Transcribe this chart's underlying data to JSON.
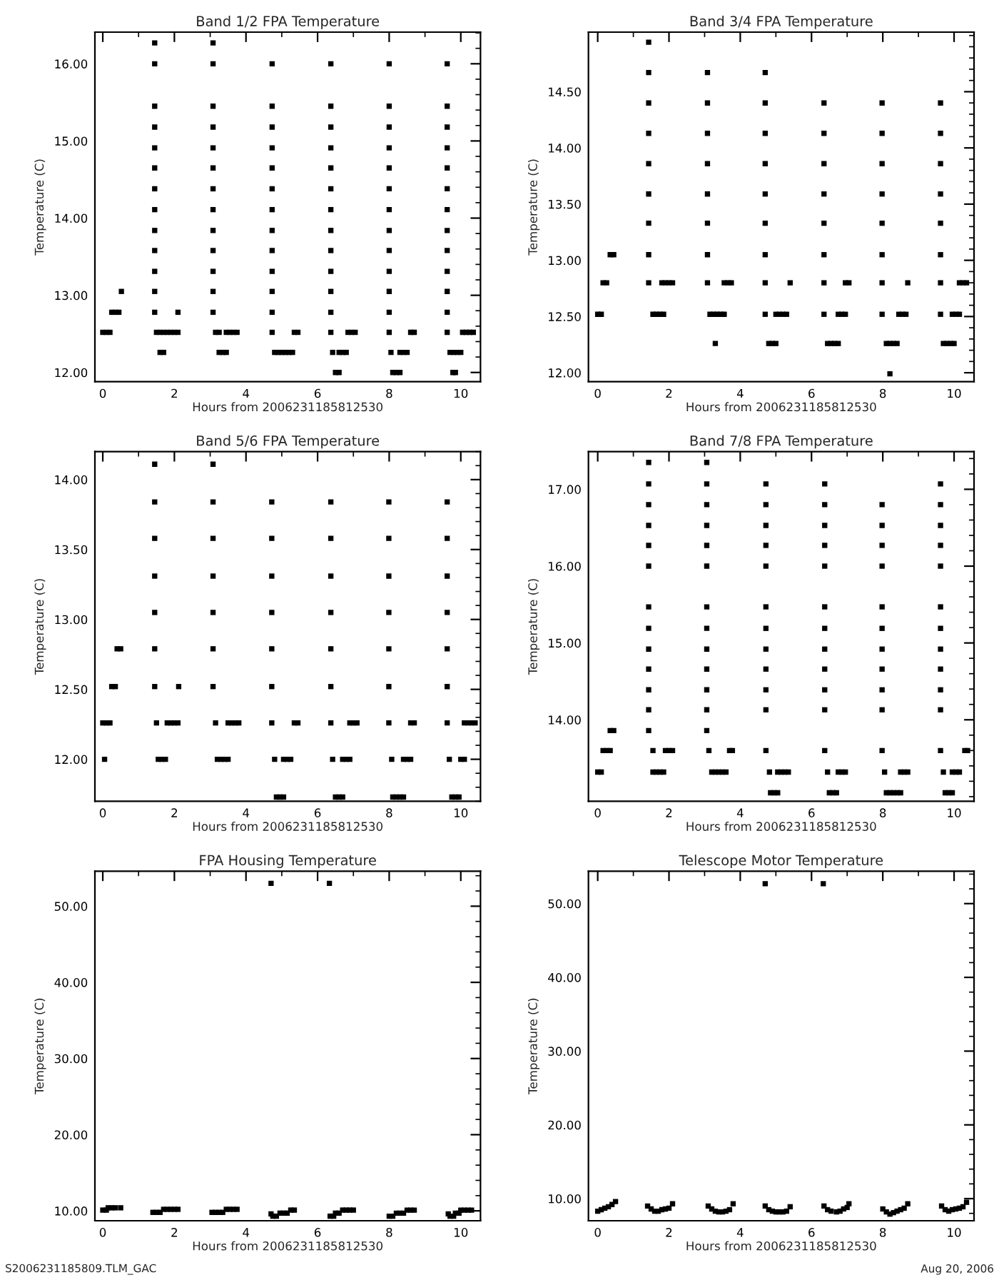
{
  "chart_data": [
    {
      "type": "scatter",
      "title": "Band 1/2 FPA Temperature",
      "xlabel": "Hours from 2006231185812530",
      "ylabel": "Temperature (C)",
      "marker": "square",
      "grid": false,
      "legend": false,
      "xlim": [
        -0.22,
        10.55
      ],
      "xticks": [
        0,
        2,
        4,
        6,
        8,
        10
      ],
      "ylim": [
        11.88,
        16.41
      ],
      "yticks": [
        {
          "value": 12,
          "label": "12.00"
        },
        {
          "value": 13,
          "label": "13.00"
        },
        {
          "value": 14,
          "label": "14.00"
        },
        {
          "value": 15,
          "label": "15.00"
        },
        {
          "value": 16,
          "label": "16.00"
        }
      ],
      "series": [
        {
          "color": "#000000",
          "x": [
            0,
            0.1,
            0.2,
            0.25,
            0.35,
            0.45,
            0.52
          ],
          "values": [
            12.52,
            12.52,
            12.52,
            12.78,
            12.78,
            12.78,
            13.05
          ]
        },
        {
          "color": "#000000",
          "x": [
            1.45,
            1.45,
            1.45,
            1.45,
            1.45,
            1.45,
            1.45,
            1.45,
            1.45,
            1.45,
            1.45,
            1.45,
            1.45
          ],
          "values": [
            12.78,
            13.05,
            13.31,
            13.58,
            13.84,
            14.11,
            14.38,
            14.65,
            14.91,
            15.18,
            15.45,
            16.0,
            16.27
          ]
        },
        {
          "color": "#000000",
          "x": [
            1.5,
            1.6,
            1.7,
            1.8,
            1.9,
            2.0,
            2.1,
            1.6,
            1.7,
            2.1
          ],
          "values": [
            12.52,
            12.52,
            12.52,
            12.52,
            12.52,
            12.52,
            12.52,
            12.26,
            12.26,
            12.78
          ]
        },
        {
          "color": "#000000",
          "x": [
            3.08,
            3.08,
            3.08,
            3.08,
            3.08,
            3.08,
            3.08,
            3.08,
            3.08,
            3.08,
            3.08,
            3.08,
            3.08
          ],
          "values": [
            12.78,
            13.05,
            13.31,
            13.58,
            13.84,
            14.11,
            14.38,
            14.65,
            14.91,
            15.18,
            15.45,
            16.0,
            16.27
          ]
        },
        {
          "color": "#000000",
          "x": [
            3.15,
            3.25,
            3.45,
            3.55,
            3.65,
            3.75,
            3.25,
            3.35,
            3.45
          ],
          "values": [
            12.52,
            12.52,
            12.52,
            12.52,
            12.52,
            12.52,
            12.26,
            12.26,
            12.26
          ]
        },
        {
          "color": "#000000",
          "x": [
            4.73,
            4.73,
            4.73,
            4.73,
            4.73,
            4.73,
            4.73,
            4.73,
            4.73,
            4.73,
            4.73,
            4.73,
            4.73
          ],
          "values": [
            12.52,
            12.78,
            13.05,
            13.31,
            13.58,
            13.84,
            14.11,
            14.38,
            14.65,
            14.91,
            15.18,
            15.45,
            16.0
          ]
        },
        {
          "color": "#000000",
          "x": [
            4.8,
            4.9,
            5.0,
            5.1,
            5.2,
            5.3,
            5.35,
            5.45
          ],
          "values": [
            12.26,
            12.26,
            12.26,
            12.26,
            12.26,
            12.26,
            12.52,
            12.52
          ]
        },
        {
          "color": "#000000",
          "x": [
            6.37,
            6.37,
            6.37,
            6.37,
            6.37,
            6.37,
            6.37,
            6.37,
            6.37,
            6.37,
            6.37,
            6.37,
            6.37
          ],
          "values": [
            12.52,
            12.78,
            13.05,
            13.31,
            13.58,
            13.84,
            14.11,
            14.38,
            14.65,
            14.91,
            15.18,
            15.45,
            16.0
          ]
        },
        {
          "color": "#000000",
          "x": [
            6.42,
            6.6,
            6.7,
            6.8,
            6.5,
            6.6,
            6.85,
            6.95,
            7.05
          ],
          "values": [
            12.26,
            12.26,
            12.26,
            12.26,
            12.0,
            12.0,
            12.52,
            12.52,
            12.52
          ]
        },
        {
          "color": "#000000",
          "x": [
            8.0,
            8.0,
            8.0,
            8.0,
            8.0,
            8.0,
            8.0,
            8.0,
            8.0,
            8.0,
            8.0,
            8.0,
            8.0
          ],
          "values": [
            12.52,
            12.78,
            13.05,
            13.31,
            13.58,
            13.84,
            14.11,
            14.38,
            14.65,
            14.91,
            15.18,
            15.45,
            16.0
          ]
        },
        {
          "color": "#000000",
          "x": [
            8.05,
            8.3,
            8.4,
            8.5,
            8.1,
            8.2,
            8.3,
            8.6,
            8.7
          ],
          "values": [
            12.26,
            12.26,
            12.26,
            12.26,
            12.0,
            12.0,
            12.0,
            12.52,
            12.52
          ]
        },
        {
          "color": "#000000",
          "x": [
            9.62,
            9.62,
            9.62,
            9.62,
            9.62,
            9.62,
            9.62,
            9.62,
            9.62,
            9.62,
            9.62,
            9.62,
            9.62
          ],
          "values": [
            12.52,
            12.78,
            13.05,
            13.31,
            13.58,
            13.84,
            14.11,
            14.38,
            14.65,
            14.91,
            15.18,
            15.45,
            16.0
          ]
        },
        {
          "color": "#000000",
          "x": [
            9.7,
            9.8,
            9.9,
            10.0,
            9.78,
            9.85,
            10.05,
            10.15,
            10.25,
            10.35
          ],
          "values": [
            12.26,
            12.26,
            12.26,
            12.26,
            12.0,
            12.0,
            12.52,
            12.52,
            12.52,
            12.52
          ]
        }
      ]
    },
    {
      "type": "scatter",
      "title": "Band 3/4 FPA Temperature",
      "xlabel": "Hours from 2006231185812530",
      "ylabel": "Temperature (C)",
      "marker": "square",
      "grid": false,
      "legend": false,
      "xlim": [
        -0.26,
        10.56
      ],
      "xticks": [
        0,
        2,
        4,
        6,
        8,
        10
      ],
      "ylim": [
        11.92,
        15.03
      ],
      "yticks": [
        {
          "value": 12,
          "label": "12.00"
        },
        {
          "value": 12.5,
          "label": "12.50"
        },
        {
          "value": 13,
          "label": "13.00"
        },
        {
          "value": 13.5,
          "label": "13.50"
        },
        {
          "value": 14,
          "label": "14.00"
        },
        {
          "value": 14.5,
          "label": "14.50"
        }
      ],
      "series": [
        {
          "color": "#000000",
          "x": [
            0.0,
            0.1,
            0.15,
            0.25,
            0.35,
            0.45
          ],
          "values": [
            12.52,
            12.52,
            12.8,
            12.8,
            13.05,
            13.05
          ]
        },
        {
          "color": "#000000",
          "x": [
            1.43,
            1.43,
            1.43,
            1.43,
            1.43,
            1.43,
            1.43,
            1.43,
            1.43
          ],
          "values": [
            12.8,
            13.05,
            13.33,
            13.59,
            13.86,
            14.13,
            14.4,
            14.67,
            14.94
          ]
        },
        {
          "color": "#000000",
          "x": [
            1.55,
            1.65,
            1.75,
            1.85,
            1.8,
            1.9,
            2.0,
            2.1
          ],
          "values": [
            12.52,
            12.52,
            12.52,
            12.52,
            12.8,
            12.8,
            12.8,
            12.8
          ]
        },
        {
          "color": "#000000",
          "x": [
            3.08,
            3.08,
            3.08,
            3.08,
            3.08,
            3.08,
            3.08,
            3.08
          ],
          "values": [
            12.8,
            13.05,
            13.33,
            13.59,
            13.86,
            14.13,
            14.4,
            14.67
          ]
        },
        {
          "color": "#000000",
          "x": [
            3.15,
            3.25,
            3.35,
            3.45,
            3.55,
            3.3,
            3.55,
            3.65,
            3.75
          ],
          "values": [
            12.52,
            12.52,
            12.52,
            12.52,
            12.52,
            12.26,
            12.8,
            12.8,
            12.8
          ]
        },
        {
          "color": "#000000",
          "x": [
            4.7,
            4.7,
            4.7,
            4.7,
            4.7,
            4.7,
            4.7,
            4.7,
            4.7
          ],
          "values": [
            12.52,
            12.8,
            13.05,
            13.33,
            13.59,
            13.86,
            14.13,
            14.4,
            14.67
          ]
        },
        {
          "color": "#000000",
          "x": [
            4.8,
            4.9,
            5.0,
            5.0,
            5.1,
            5.2,
            5.3,
            5.4
          ],
          "values": [
            12.26,
            12.26,
            12.26,
            12.52,
            12.52,
            12.52,
            12.52,
            12.8
          ]
        },
        {
          "color": "#000000",
          "x": [
            6.35,
            6.35,
            6.35,
            6.35,
            6.35,
            6.35,
            6.35,
            6.35
          ],
          "values": [
            12.52,
            12.8,
            13.05,
            13.33,
            13.59,
            13.86,
            14.13,
            14.4
          ]
        },
        {
          "color": "#000000",
          "x": [
            6.45,
            6.55,
            6.65,
            6.75,
            6.75,
            6.85,
            6.95,
            6.95,
            7.05
          ],
          "values": [
            12.26,
            12.26,
            12.26,
            12.26,
            12.52,
            12.52,
            12.52,
            12.8,
            12.8
          ]
        },
        {
          "color": "#000000",
          "x": [
            7.98,
            7.98,
            7.98,
            7.98,
            7.98,
            7.98,
            7.98,
            7.98
          ],
          "values": [
            12.52,
            12.8,
            13.05,
            13.33,
            13.59,
            13.86,
            14.13,
            14.4
          ]
        },
        {
          "color": "#000000",
          "x": [
            8.1,
            8.2,
            8.3,
            8.4,
            8.2,
            8.45,
            8.55,
            8.65,
            8.7
          ],
          "values": [
            12.26,
            12.26,
            12.26,
            12.26,
            11.99,
            12.52,
            12.52,
            12.52,
            12.8
          ]
        },
        {
          "color": "#000000",
          "x": [
            9.62,
            9.62,
            9.62,
            9.62,
            9.62,
            9.62,
            9.62,
            9.62
          ],
          "values": [
            12.52,
            12.8,
            13.05,
            13.33,
            13.59,
            13.86,
            14.13,
            14.4
          ]
        },
        {
          "color": "#000000",
          "x": [
            9.7,
            9.8,
            9.9,
            10.0,
            9.95,
            10.05,
            10.15,
            10.15,
            10.25,
            10.35
          ],
          "values": [
            12.26,
            12.26,
            12.26,
            12.26,
            12.52,
            12.52,
            12.52,
            12.8,
            12.8,
            12.8
          ]
        }
      ]
    },
    {
      "type": "scatter",
      "title": "Band 5/6 FPA Temperature",
      "xlabel": "Hours from 2006231185812530",
      "ylabel": "Temperature (C)",
      "marker": "square",
      "grid": false,
      "legend": false,
      "xlim": [
        -0.22,
        10.55
      ],
      "xticks": [
        0,
        2,
        4,
        6,
        8,
        10
      ],
      "ylim": [
        11.7,
        14.2
      ],
      "yticks": [
        {
          "value": 12,
          "label": "12.00"
        },
        {
          "value": 12.5,
          "label": "12.50"
        },
        {
          "value": 13,
          "label": "13.00"
        },
        {
          "value": 13.5,
          "label": "13.50"
        },
        {
          "value": 14,
          "label": "14.00"
        }
      ],
      "series": [
        {
          "color": "#000000",
          "x": [
            0.05,
            0.0,
            0.1,
            0.2,
            0.25,
            0.35,
            0.4,
            0.5
          ],
          "values": [
            12.0,
            12.26,
            12.26,
            12.26,
            12.52,
            12.52,
            12.79,
            12.79
          ]
        },
        {
          "color": "#000000",
          "x": [
            1.45,
            1.45,
            1.45,
            1.45,
            1.45,
            1.45,
            1.45
          ],
          "values": [
            12.52,
            12.79,
            13.05,
            13.31,
            13.58,
            13.84,
            14.11
          ]
        },
        {
          "color": "#000000",
          "x": [
            1.5,
            1.55,
            1.65,
            1.75,
            1.8,
            1.9,
            2.0,
            2.1,
            2.12
          ],
          "values": [
            12.26,
            12.0,
            12.0,
            12.0,
            12.26,
            12.26,
            12.26,
            12.26,
            12.52
          ]
        },
        {
          "color": "#000000",
          "x": [
            3.08,
            3.08,
            3.08,
            3.08,
            3.08,
            3.08,
            3.08
          ],
          "values": [
            12.52,
            12.79,
            13.05,
            13.31,
            13.58,
            13.84,
            14.11
          ]
        },
        {
          "color": "#000000",
          "x": [
            3.15,
            3.2,
            3.3,
            3.4,
            3.5,
            3.5,
            3.6,
            3.7,
            3.8
          ],
          "values": [
            12.26,
            12.0,
            12.0,
            12.0,
            12.0,
            12.26,
            12.26,
            12.26,
            12.26
          ]
        },
        {
          "color": "#000000",
          "x": [
            4.72,
            4.72,
            4.72,
            4.72,
            4.72,
            4.72,
            4.72
          ],
          "values": [
            12.26,
            12.52,
            12.79,
            13.05,
            13.31,
            13.58,
            13.84
          ]
        },
        {
          "color": "#000000",
          "x": [
            4.8,
            4.85,
            4.95,
            5.05,
            5.05,
            5.15,
            5.25,
            5.35,
            5.45
          ],
          "values": [
            12.0,
            11.73,
            11.73,
            11.73,
            12.0,
            12.0,
            12.0,
            12.26,
            12.26
          ]
        },
        {
          "color": "#000000",
          "x": [
            6.37,
            6.37,
            6.37,
            6.37,
            6.37,
            6.37,
            6.37
          ],
          "values": [
            12.26,
            12.52,
            12.79,
            13.05,
            13.31,
            13.58,
            13.84
          ]
        },
        {
          "color": "#000000",
          "x": [
            6.42,
            6.5,
            6.6,
            6.7,
            6.7,
            6.8,
            6.9,
            6.9,
            7.0,
            7.1
          ],
          "values": [
            12.0,
            11.73,
            11.73,
            11.73,
            12.0,
            12.0,
            12.0,
            12.26,
            12.26,
            12.26
          ]
        },
        {
          "color": "#000000",
          "x": [
            7.99,
            7.99,
            7.99,
            7.99,
            7.99,
            7.99,
            7.99
          ],
          "values": [
            12.26,
            12.52,
            12.79,
            13.05,
            13.31,
            13.58,
            13.84
          ]
        },
        {
          "color": "#000000",
          "x": [
            8.07,
            8.1,
            8.2,
            8.3,
            8.4,
            8.4,
            8.5,
            8.6,
            8.6,
            8.7
          ],
          "values": [
            12.0,
            11.73,
            11.73,
            11.73,
            11.73,
            12.0,
            12.0,
            12.0,
            12.26,
            12.26
          ]
        },
        {
          "color": "#000000",
          "x": [
            9.62,
            9.62,
            9.62,
            9.62,
            9.62,
            9.62,
            9.62
          ],
          "values": [
            12.26,
            12.52,
            12.79,
            13.05,
            13.31,
            13.58,
            13.84
          ]
        },
        {
          "color": "#000000",
          "x": [
            9.68,
            9.75,
            9.85,
            9.95,
            10.0,
            10.1,
            10.1,
            10.2,
            10.3,
            10.4
          ],
          "values": [
            12.0,
            11.73,
            11.73,
            11.73,
            12.0,
            12.0,
            12.26,
            12.26,
            12.26,
            12.26
          ]
        }
      ]
    },
    {
      "type": "scatter",
      "title": "Band 7/8 FPA Temperature",
      "xlabel": "Hours from 2006231185812530",
      "ylabel": "Temperature (C)",
      "marker": "square",
      "grid": false,
      "legend": false,
      "xlim": [
        -0.26,
        10.56
      ],
      "xticks": [
        0,
        2,
        4,
        6,
        8,
        10
      ],
      "ylim": [
        12.94,
        17.49
      ],
      "yticks": [
        {
          "value": 14,
          "label": "14.00"
        },
        {
          "value": 15,
          "label": "15.00"
        },
        {
          "value": 16,
          "label": "16.00"
        },
        {
          "value": 17,
          "label": "17.00"
        }
      ],
      "series": [
        {
          "color": "#000000",
          "x": [
            0.0,
            0.1,
            0.15,
            0.25,
            0.35,
            0.35,
            0.45
          ],
          "values": [
            13.32,
            13.32,
            13.6,
            13.6,
            13.6,
            13.86,
            13.86
          ]
        },
        {
          "color": "#000000",
          "x": [
            1.43,
            1.43,
            1.43,
            1.43,
            1.43,
            1.43,
            1.43,
            1.43,
            1.43,
            1.43,
            1.43,
            1.43,
            1.43
          ],
          "values": [
            13.86,
            14.13,
            14.39,
            14.66,
            14.92,
            15.19,
            15.47,
            16.0,
            16.27,
            16.53,
            16.8,
            17.07,
            17.35
          ]
        },
        {
          "color": "#000000",
          "x": [
            1.55,
            1.55,
            1.65,
            1.75,
            1.85,
            1.9,
            2.0,
            2.1
          ],
          "values": [
            13.6,
            13.32,
            13.32,
            13.32,
            13.32,
            13.6,
            13.6,
            13.6
          ]
        },
        {
          "color": "#000000",
          "x": [
            3.06,
            3.06,
            3.06,
            3.06,
            3.06,
            3.06,
            3.06,
            3.06,
            3.06,
            3.06,
            3.06,
            3.06,
            3.06
          ],
          "values": [
            13.86,
            14.13,
            14.39,
            14.66,
            14.92,
            15.19,
            15.47,
            16.0,
            16.27,
            16.53,
            16.8,
            17.07,
            17.35
          ]
        },
        {
          "color": "#000000",
          "x": [
            3.12,
            3.2,
            3.3,
            3.4,
            3.5,
            3.6,
            3.7,
            3.78
          ],
          "values": [
            13.6,
            13.32,
            13.32,
            13.32,
            13.32,
            13.32,
            13.6,
            13.6
          ]
        },
        {
          "color": "#000000",
          "x": [
            4.72,
            4.72,
            4.72,
            4.72,
            4.72,
            4.72,
            4.72,
            4.72,
            4.72,
            4.72,
            4.72,
            4.72
          ],
          "values": [
            13.6,
            14.13,
            14.39,
            14.66,
            14.92,
            15.19,
            15.47,
            16.0,
            16.27,
            16.53,
            16.8,
            17.07
          ]
        },
        {
          "color": "#000000",
          "x": [
            4.82,
            4.85,
            4.95,
            5.05,
            5.05,
            5.15,
            5.25,
            5.35
          ],
          "values": [
            13.32,
            13.05,
            13.05,
            13.05,
            13.32,
            13.32,
            13.32,
            13.32
          ]
        },
        {
          "color": "#000000",
          "x": [
            6.37,
            6.37,
            6.37,
            6.37,
            6.37,
            6.37,
            6.37,
            6.37,
            6.37,
            6.37,
            6.37,
            6.37
          ],
          "values": [
            13.6,
            14.13,
            14.39,
            14.66,
            14.92,
            15.19,
            15.47,
            16.0,
            16.27,
            16.53,
            16.8,
            17.07
          ]
        },
        {
          "color": "#000000",
          "x": [
            6.45,
            6.5,
            6.6,
            6.7,
            6.75,
            6.85,
            6.95
          ],
          "values": [
            13.32,
            13.05,
            13.05,
            13.05,
            13.32,
            13.32,
            13.32
          ]
        },
        {
          "color": "#000000",
          "x": [
            7.98,
            7.98,
            7.98,
            7.98,
            7.98,
            7.98,
            7.98,
            7.98,
            7.98,
            7.98,
            7.98
          ],
          "values": [
            13.6,
            14.13,
            14.39,
            14.66,
            14.92,
            15.19,
            15.47,
            16.0,
            16.27,
            16.53,
            16.8
          ]
        },
        {
          "color": "#000000",
          "x": [
            8.05,
            8.1,
            8.2,
            8.3,
            8.4,
            8.5,
            8.5,
            8.6,
            8.7
          ],
          "values": [
            13.32,
            13.05,
            13.05,
            13.05,
            13.05,
            13.05,
            13.32,
            13.32,
            13.32
          ]
        },
        {
          "color": "#000000",
          "x": [
            9.62,
            9.62,
            9.62,
            9.62,
            9.62,
            9.62,
            9.62,
            9.62,
            9.62,
            9.62,
            9.62,
            9.62
          ],
          "values": [
            13.6,
            14.13,
            14.39,
            14.66,
            14.92,
            15.19,
            15.47,
            16.0,
            16.27,
            16.53,
            16.8,
            17.07
          ]
        },
        {
          "color": "#000000",
          "x": [
            9.7,
            9.75,
            9.85,
            9.95,
            9.95,
            10.05,
            10.15,
            10.3,
            10.38
          ],
          "values": [
            13.32,
            13.05,
            13.05,
            13.05,
            13.32,
            13.32,
            13.32,
            13.6,
            13.6
          ]
        }
      ]
    },
    {
      "type": "scatter",
      "title": "FPA Housing Temperature",
      "xlabel": "Hours from 2006231185812530",
      "ylabel": "Temperature (C)",
      "marker": "square",
      "grid": false,
      "legend": false,
      "annotations": [
        "S2006231185809.TLM_GAC"
      ],
      "xlim": [
        -0.22,
        10.55
      ],
      "xticks": [
        0,
        2,
        4,
        6,
        8,
        10
      ],
      "ylim": [
        8.7,
        54.6
      ],
      "yticks": [
        {
          "value": 10,
          "label": "10.00"
        },
        {
          "value": 20,
          "label": "20.00"
        },
        {
          "value": 30,
          "label": "30.00"
        },
        {
          "value": 40,
          "label": "40.00"
        },
        {
          "value": 50,
          "label": "50.00"
        }
      ],
      "series": [
        {
          "color": "#000000",
          "x": [
            0.0,
            0.1,
            0.15,
            0.25,
            0.35,
            0.5,
            1.4,
            1.5,
            1.6,
            1.7,
            1.8,
            1.9,
            2.0,
            2.1,
            3.05,
            3.15,
            3.25,
            3.35,
            3.45,
            3.55,
            3.65,
            3.75,
            4.7,
            4.75,
            4.85,
            4.95,
            5.05,
            5.15,
            5.25,
            5.35,
            4.7,
            6.35,
            6.45,
            6.5,
            6.6,
            6.7,
            6.8,
            6.9,
            7.0,
            6.33,
            8.0,
            8.1,
            8.2,
            8.3,
            8.4,
            8.5,
            8.6,
            8.7,
            9.65,
            9.7,
            9.8,
            9.85,
            9.95,
            10.0,
            10.1,
            10.2,
            10.3
          ],
          "values": [
            10.1,
            10.1,
            10.4,
            10.4,
            10.4,
            10.4,
            9.8,
            9.8,
            9.8,
            10.2,
            10.2,
            10.2,
            10.2,
            10.2,
            9.8,
            9.8,
            9.8,
            9.8,
            10.2,
            10.2,
            10.2,
            10.2,
            9.6,
            9.3,
            9.3,
            9.7,
            9.7,
            9.7,
            10.1,
            10.1,
            53.0,
            9.3,
            9.3,
            9.7,
            9.7,
            10.1,
            10.1,
            10.1,
            10.1,
            53.0,
            9.3,
            9.3,
            9.7,
            9.7,
            9.7,
            10.1,
            10.1,
            10.1,
            9.6,
            9.3,
            9.3,
            9.7,
            9.7,
            10.1,
            10.1,
            10.1,
            10.1
          ]
        }
      ]
    },
    {
      "type": "scatter",
      "title": "Telescope Motor Temperature",
      "xlabel": "Hours from 2006231185812530",
      "ylabel": "Temperature (C)",
      "marker": "square",
      "grid": false,
      "legend": false,
      "annotations": [
        "Aug 20, 2006"
      ],
      "xlim": [
        -0.26,
        10.56
      ],
      "xticks": [
        0,
        2,
        4,
        6,
        8,
        10
      ],
      "ylim": [
        7.0,
        54.4
      ],
      "yticks": [
        {
          "value": 10,
          "label": "10.00"
        },
        {
          "value": 20,
          "label": "20.00"
        },
        {
          "value": 30,
          "label": "30.00"
        },
        {
          "value": 40,
          "label": "40.00"
        },
        {
          "value": 50,
          "label": "50.00"
        }
      ],
      "series": [
        {
          "color": "#000000",
          "x": [
            0.0,
            0.1,
            0.2,
            0.3,
            0.4,
            0.5,
            1.4,
            1.5,
            1.6,
            1.7,
            1.8,
            1.9,
            2.0,
            2.1,
            3.1,
            3.2,
            3.3,
            3.4,
            3.5,
            3.6,
            3.7,
            3.8,
            4.7,
            4.8,
            4.9,
            5.0,
            5.1,
            5.2,
            5.3,
            5.4,
            6.35,
            6.45,
            6.55,
            6.7,
            6.8,
            6.9,
            7.0,
            7.05,
            8.0,
            8.1,
            8.2,
            8.3,
            8.4,
            8.5,
            8.6,
            8.7,
            9.65,
            9.75,
            9.85,
            9.95,
            10.05,
            10.15,
            10.25,
            10.35,
            4.7,
            6.33
          ],
          "values": [
            8.3,
            8.5,
            8.7,
            8.9,
            9.2,
            9.6,
            9.0,
            8.6,
            8.3,
            8.3,
            8.5,
            8.6,
            8.7,
            9.3,
            9.0,
            8.6,
            8.3,
            8.2,
            8.2,
            8.3,
            8.5,
            9.3,
            9.0,
            8.5,
            8.3,
            8.2,
            8.2,
            8.2,
            8.3,
            8.9,
            9.0,
            8.5,
            8.3,
            8.2,
            8.3,
            8.6,
            8.8,
            9.3,
            8.6,
            8.2,
            7.9,
            8.1,
            8.3,
            8.5,
            8.7,
            9.3,
            9.0,
            8.5,
            8.3,
            8.5,
            8.6,
            8.7,
            8.9,
            9.5,
            52.7,
            52.7
          ]
        }
      ]
    }
  ]
}
